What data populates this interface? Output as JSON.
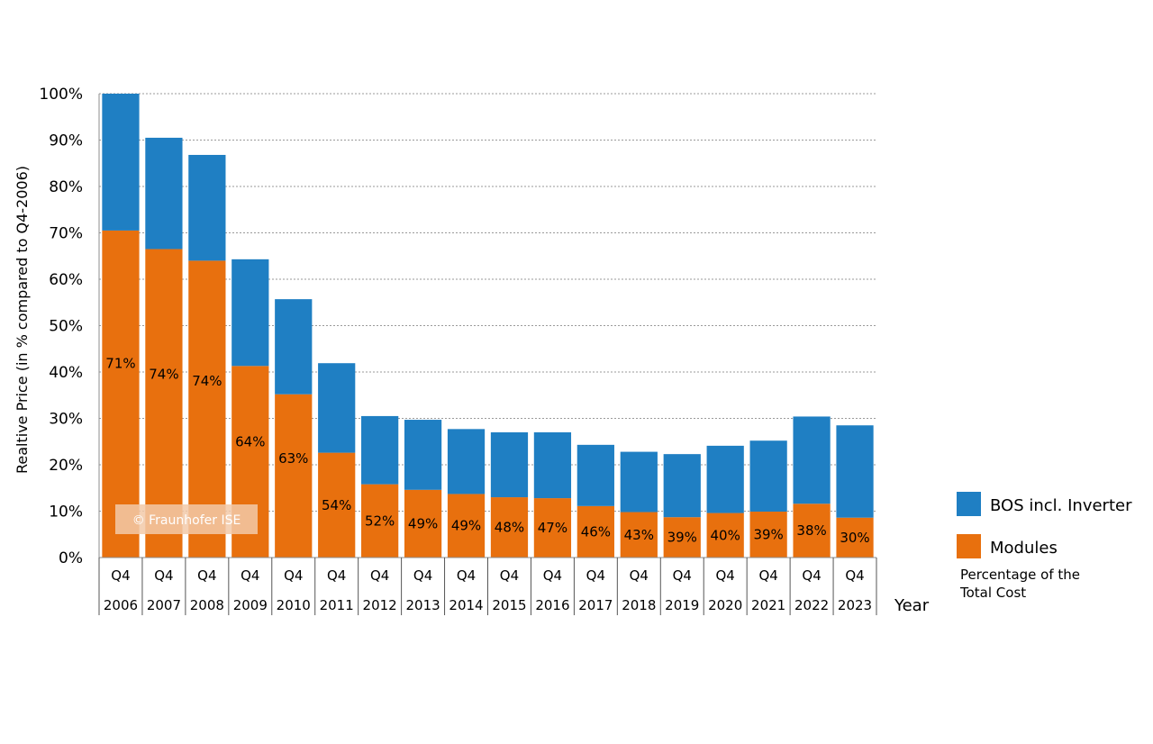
{
  "chart_data": {
    "type": "bar",
    "stacked": true,
    "title": "",
    "ylabel": "Realtive Price (in % compared to Q4-2006)",
    "xlabel": "Year",
    "ylim": [
      0,
      100
    ],
    "y_ticks": [
      "0%",
      "10%",
      "20%",
      "30%",
      "40%",
      "50%",
      "60%",
      "70%",
      "80%",
      "90%",
      "100%"
    ],
    "grid": "horizontal-dotted",
    "categories": [
      {
        "quarter": "Q4",
        "year": "2006"
      },
      {
        "quarter": "Q4",
        "year": "2007"
      },
      {
        "quarter": "Q4",
        "year": "2008"
      },
      {
        "quarter": "Q4",
        "year": "2009"
      },
      {
        "quarter": "Q4",
        "year": "2010"
      },
      {
        "quarter": "Q4",
        "year": "2011"
      },
      {
        "quarter": "Q4",
        "year": "2012"
      },
      {
        "quarter": "Q4",
        "year": "2013"
      },
      {
        "quarter": "Q4",
        "year": "2014"
      },
      {
        "quarter": "Q4",
        "year": "2015"
      },
      {
        "quarter": "Q4",
        "year": "2016"
      },
      {
        "quarter": "Q4",
        "year": "2017"
      },
      {
        "quarter": "Q4",
        "year": "2018"
      },
      {
        "quarter": "Q4",
        "year": "2019"
      },
      {
        "quarter": "Q4",
        "year": "2020"
      },
      {
        "quarter": "Q4",
        "year": "2021"
      },
      {
        "quarter": "Q4",
        "year": "2022"
      },
      {
        "quarter": "Q4",
        "year": "2023"
      }
    ],
    "series": [
      {
        "name": "Modules",
        "color": "#e8700e",
        "values": [
          70.5,
          66.5,
          64,
          41.3,
          35.2,
          22.6,
          15.8,
          14.6,
          13.7,
          13.0,
          12.8,
          11.1,
          9.8,
          8.7,
          9.6,
          9.9,
          11.6,
          8.6
        ],
        "labels": [
          "71%",
          "74%",
          "74%",
          "64%",
          "63%",
          "54%",
          "52%",
          "49%",
          "49%",
          "48%",
          "47%",
          "46%",
          "43%",
          "39%",
          "40%",
          "39%",
          "38%",
          "30%"
        ]
      },
      {
        "name": "BOS incl. Inverter",
        "color": "#1f7fc3",
        "values": [
          29.5,
          24.0,
          22.8,
          23.0,
          20.5,
          19.3,
          14.7,
          15.1,
          14.0,
          14.0,
          14.2,
          13.2,
          13.0,
          13.6,
          14.5,
          15.3,
          18.8,
          19.9
        ]
      }
    ],
    "legend": {
      "placement": "right",
      "items": [
        "BOS incl. Inverter",
        "Modules"
      ],
      "note": [
        "Percentage of the",
        "Total Cost"
      ]
    },
    "watermark": "© Fraunhofer ISE"
  }
}
